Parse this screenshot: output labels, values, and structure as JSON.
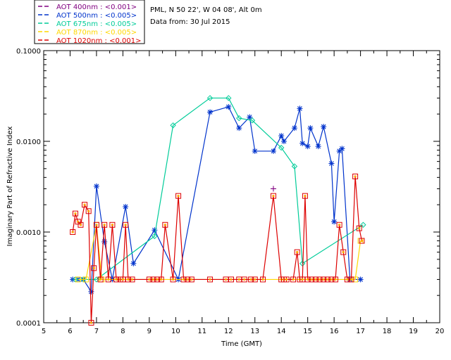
{
  "info": {
    "site": "PML, N 50 22', W 04 08', Alt 0m",
    "date": "Data from: 30 Jul 2015"
  },
  "legend": [
    {
      "label": "AOT  400nm : <0.001>",
      "color": "#800080"
    },
    {
      "label": "AOT  500nm : <0.005>",
      "color": "#0033cc"
    },
    {
      "label": "AOT  675nm : <0.005>",
      "color": "#00cc99"
    },
    {
      "label": "AOT  870nm : <0.005>",
      "color": "#ffd700"
    },
    {
      "label": "AOT 1020nm : <0.001>",
      "color": "#dd0000"
    }
  ],
  "chart_data": {
    "type": "line",
    "ylabel": "Imaginary Part of Refractive Index",
    "xlabel": "Time (GMT)",
    "xlim": [
      5,
      20
    ],
    "ylim": [
      0.0001,
      0.1
    ],
    "yscale": "log",
    "xticks": [
      "5",
      "6",
      "7",
      "8",
      "9",
      "10",
      "11",
      "12",
      "13",
      "14",
      "15",
      "16",
      "17",
      "18",
      "19",
      "20"
    ],
    "yticks": [
      "0.0001",
      "0.0010",
      "0.0100",
      "0.1000"
    ],
    "series": [
      {
        "name": "AOT  400nm",
        "color": "#800080",
        "marker": "plus",
        "x": [
          13.7
        ],
        "y": [
          0.003
        ]
      },
      {
        "name": "AOT  500nm",
        "color": "#0033cc",
        "marker": "star",
        "x": [
          6.1,
          6.3,
          6.5,
          6.8,
          7.0,
          7.3,
          7.6,
          8.1,
          8.4,
          9.2,
          10.1,
          11.3,
          12.0,
          12.4,
          12.8,
          13.0,
          13.7,
          14.0,
          14.1,
          14.5,
          14.7,
          14.8,
          15.0,
          15.1,
          15.4,
          15.6,
          15.9,
          16.0,
          16.2,
          16.3,
          16.6,
          17.0
        ],
        "y": [
          0.0003,
          0.0003,
          0.0003,
          0.00022,
          0.0032,
          0.00078,
          0.0003,
          0.0019,
          0.00045,
          0.00105,
          0.0003,
          0.021,
          0.024,
          0.014,
          0.0185,
          0.0078,
          0.0078,
          0.0115,
          0.01,
          0.014,
          0.023,
          0.0095,
          0.0088,
          0.014,
          0.0088,
          0.0145,
          0.0057,
          0.0013,
          0.0078,
          0.0083,
          0.0003,
          0.0003
        ]
      },
      {
        "name": "AOT  675nm",
        "color": "#00cc99",
        "marker": "diamond",
        "x": [
          6.2,
          6.5,
          7.0,
          9.2,
          9.9,
          11.3,
          12.0,
          12.4,
          12.9,
          14.0,
          14.5,
          14.8,
          17.1
        ],
        "y": [
          0.0003,
          0.0003,
          0.0003,
          0.0009,
          0.015,
          0.03,
          0.03,
          0.018,
          0.017,
          0.0085,
          0.0053,
          0.00045,
          0.0012
        ]
      },
      {
        "name": "AOT  870nm",
        "color": "#ffd700",
        "marker": "square",
        "x": [
          6.3,
          6.6,
          7.0,
          7.2,
          16.8,
          17.0
        ],
        "y": [
          0.0003,
          0.0003,
          0.0012,
          0.0003,
          0.0003,
          0.0008
        ]
      },
      {
        "name": "AOT 1020nm",
        "color": "#dd0000",
        "marker": "square",
        "x": [
          6.1,
          6.2,
          6.3,
          6.4,
          6.55,
          6.7,
          6.8,
          6.9,
          7.0,
          7.15,
          7.3,
          7.45,
          7.6,
          7.75,
          7.9,
          8.0,
          8.1,
          8.2,
          8.35,
          9.0,
          9.15,
          9.3,
          9.45,
          9.6,
          9.9,
          10.1,
          10.3,
          10.45,
          10.6,
          11.3,
          11.9,
          12.1,
          12.4,
          12.6,
          12.85,
          13.0,
          13.3,
          13.7,
          14.0,
          14.1,
          14.2,
          14.45,
          14.6,
          14.7,
          14.8,
          14.9,
          15.0,
          15.15,
          15.3,
          15.45,
          15.6,
          15.75,
          15.9,
          16.05,
          16.2,
          16.35,
          16.5,
          16.65,
          16.8,
          16.95,
          17.05
        ],
        "y": [
          0.001,
          0.0016,
          0.0013,
          0.0012,
          0.002,
          0.0017,
          0.0001,
          0.0004,
          0.0012,
          0.0003,
          0.0012,
          0.0003,
          0.0012,
          0.0003,
          0.0003,
          0.0003,
          0.0012,
          0.0003,
          0.0003,
          0.0003,
          0.0003,
          0.0003,
          0.0003,
          0.0012,
          0.0003,
          0.0025,
          0.0003,
          0.0003,
          0.0003,
          0.0003,
          0.0003,
          0.0003,
          0.0003,
          0.0003,
          0.0003,
          0.0003,
          0.0003,
          0.0025,
          0.0003,
          0.0003,
          0.0003,
          0.0003,
          0.0006,
          0.0003,
          0.0003,
          0.0025,
          0.0003,
          0.0003,
          0.0003,
          0.0003,
          0.0003,
          0.0003,
          0.0003,
          0.0003,
          0.0012,
          0.0006,
          0.0003,
          0.0003,
          0.0041,
          0.0011,
          0.0008
        ]
      }
    ]
  }
}
